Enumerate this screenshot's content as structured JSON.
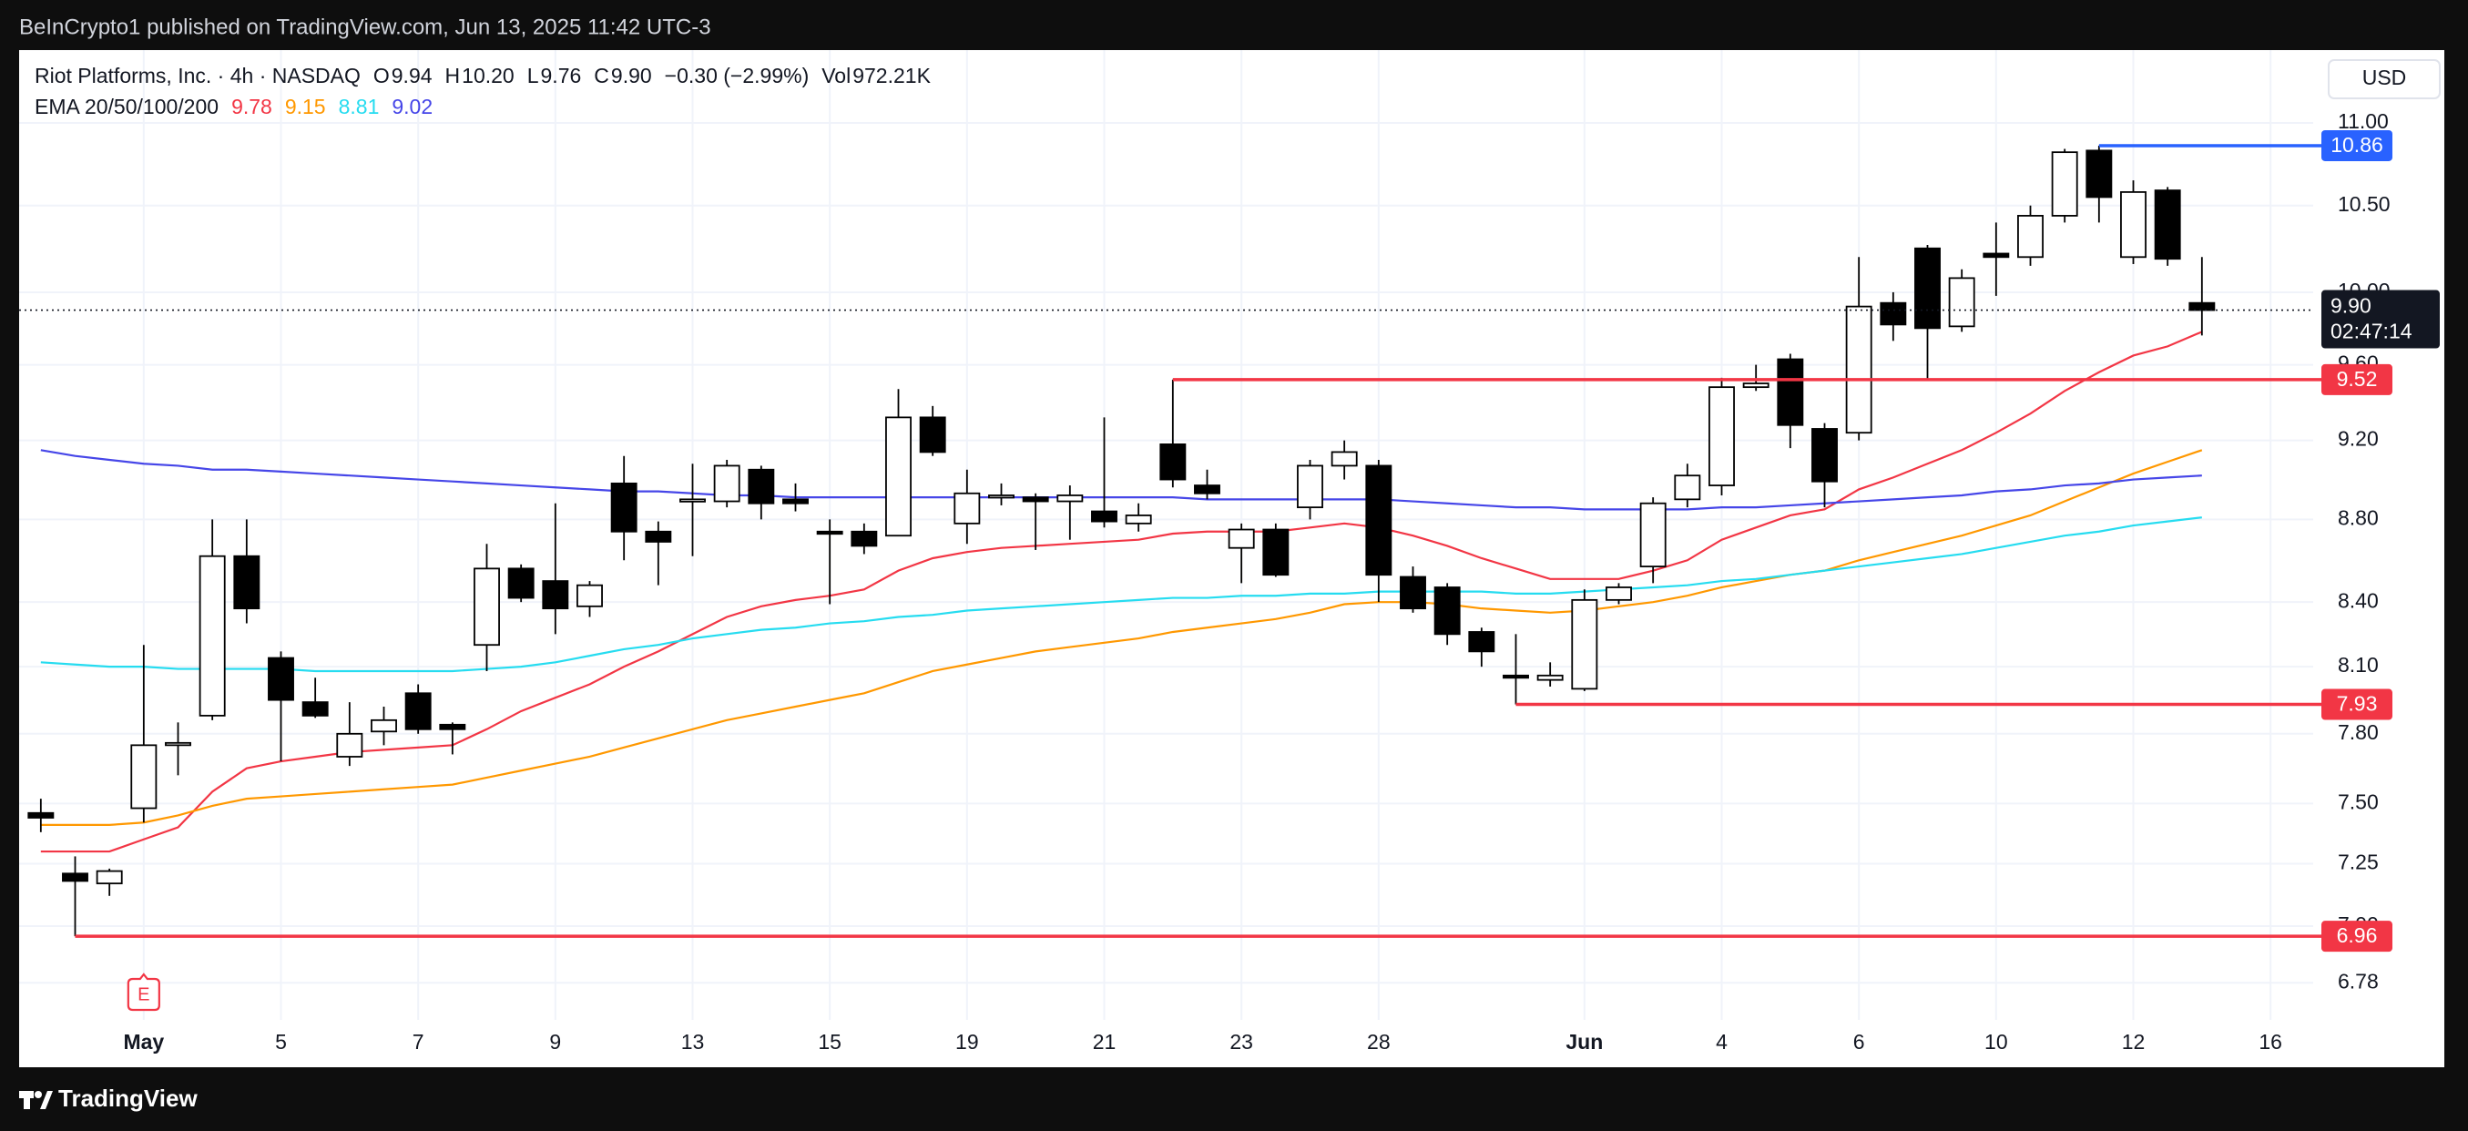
{
  "header": {
    "attribution": "BeInCrypto1 published on TradingView.com, Jun 13, 2025 11:42 UTC-3"
  },
  "chart_data": {
    "type": "candlestick",
    "title": "Riot Platforms, Inc. · 4h · NASDAQ",
    "currency": "USD",
    "ohlc_labels": [
      "O",
      "H",
      "L",
      "C"
    ],
    "last_value_labels": {
      "open": "9.94",
      "high": "10.20",
      "low": "9.76",
      "close": "9.90"
    },
    "change": "−0.30 (−2.99%)",
    "volume_label": "Vol",
    "volume": "972.21K",
    "countdown": "02:47:14",
    "categories": [
      null,
      null,
      null,
      "May",
      null,
      null,
      null,
      "5",
      null,
      null,
      null,
      "7",
      null,
      null,
      null,
      "9",
      null,
      null,
      null,
      "13",
      null,
      null,
      null,
      "15",
      null,
      null,
      null,
      "19",
      null,
      null,
      null,
      "21",
      null,
      null,
      null,
      "23",
      null,
      null,
      null,
      "28",
      null,
      null,
      null,
      null,
      null,
      "Jun",
      null,
      null,
      null,
      "4",
      null,
      null,
      null,
      "6",
      null,
      null,
      null,
      "10",
      null,
      null,
      null,
      "12",
      null,
      null,
      null,
      "16"
    ],
    "open": [
      7.46,
      7.21,
      7.17,
      7.48,
      7.75,
      7.88,
      8.62,
      8.14,
      7.94,
      7.7,
      7.81,
      7.98,
      7.84,
      8.2,
      8.56,
      8.5,
      8.38,
      8.98,
      8.74,
      8.89,
      8.89,
      9.05,
      8.9,
      8.74,
      8.74,
      8.72,
      9.32,
      8.78,
      8.92,
      8.91,
      8.89,
      8.84,
      8.78,
      9.18,
      8.97,
      8.66,
      8.75,
      8.86,
      9.07,
      9.07,
      8.52,
      8.47,
      8.26,
      8.06,
      8.04,
      8.0,
      8.41,
      8.57,
      8.9,
      8.97,
      9.48,
      9.63,
      9.26,
      9.24,
      9.94,
      10.25,
      9.81,
      10.22,
      10.2,
      10.44,
      10.83,
      10.2,
      10.59,
      9.94,
      null,
      null
    ],
    "high": [
      7.52,
      7.28,
      7.23,
      8.2,
      7.85,
      8.8,
      8.8,
      8.17,
      8.05,
      7.94,
      7.92,
      8.02,
      7.85,
      8.68,
      8.58,
      8.88,
      8.5,
      9.12,
      8.79,
      9.08,
      9.1,
      9.07,
      8.98,
      8.8,
      8.78,
      9.47,
      9.38,
      9.05,
      8.98,
      8.93,
      8.97,
      9.32,
      8.88,
      9.52,
      9.05,
      8.78,
      8.78,
      9.1,
      9.2,
      9.1,
      8.57,
      8.49,
      8.28,
      8.25,
      8.12,
      8.46,
      8.49,
      8.91,
      9.08,
      9.53,
      9.6,
      9.66,
      9.29,
      10.2,
      10.0,
      10.27,
      10.13,
      10.4,
      10.5,
      10.84,
      10.86,
      10.65,
      10.61,
      10.2,
      null,
      null
    ],
    "low": [
      7.38,
      6.96,
      7.12,
      7.42,
      7.62,
      7.86,
      8.3,
      7.68,
      7.87,
      7.66,
      7.75,
      7.8,
      7.71,
      8.08,
      8.4,
      8.25,
      8.33,
      8.6,
      8.48,
      8.62,
      8.86,
      8.8,
      8.84,
      8.39,
      8.63,
      8.72,
      9.12,
      8.68,
      8.87,
      8.65,
      8.7,
      8.76,
      8.74,
      8.96,
      8.9,
      8.49,
      8.52,
      8.8,
      9.0,
      8.4,
      8.35,
      8.2,
      8.1,
      7.93,
      8.01,
      7.99,
      8.39,
      8.49,
      8.86,
      8.92,
      9.46,
      9.16,
      8.86,
      9.2,
      9.73,
      9.52,
      9.78,
      9.98,
      10.15,
      10.4,
      10.4,
      10.16,
      10.15,
      9.76,
      null,
      null
    ],
    "close": [
      7.44,
      7.18,
      7.22,
      7.75,
      7.76,
      8.62,
      8.37,
      7.95,
      7.88,
      7.8,
      7.86,
      7.82,
      7.82,
      8.56,
      8.42,
      8.37,
      8.48,
      8.74,
      8.69,
      8.9,
      9.07,
      8.88,
      8.88,
      8.73,
      8.67,
      9.32,
      9.14,
      8.93,
      8.92,
      8.89,
      8.92,
      8.79,
      8.82,
      9.0,
      8.93,
      8.75,
      8.53,
      9.07,
      9.14,
      8.53,
      8.37,
      8.25,
      8.17,
      8.05,
      8.06,
      8.41,
      8.47,
      8.88,
      9.02,
      9.48,
      9.5,
      9.28,
      8.99,
      9.92,
      9.82,
      9.8,
      10.08,
      10.2,
      10.44,
      10.82,
      10.55,
      10.58,
      10.19,
      9.9,
      null,
      null
    ],
    "up_color": "#ffffff",
    "down_color": "#000000",
    "wick_color": "#000000",
    "indicator_title": "EMA 20/50/100/200",
    "series": [
      {
        "color": "#f23645",
        "values": [
          7.3,
          7.3,
          7.3,
          7.35,
          7.4,
          7.55,
          7.65,
          7.68,
          7.7,
          7.72,
          7.73,
          7.74,
          7.75,
          7.82,
          7.9,
          7.96,
          8.02,
          8.1,
          8.17,
          8.25,
          8.33,
          8.38,
          8.41,
          8.43,
          8.46,
          8.55,
          8.61,
          8.64,
          8.66,
          8.67,
          8.68,
          8.69,
          8.7,
          8.73,
          8.74,
          8.74,
          8.74,
          8.76,
          8.78,
          8.76,
          8.72,
          8.67,
          8.61,
          8.56,
          8.51,
          8.51,
          8.51,
          8.55,
          8.6,
          8.7,
          8.76,
          8.82,
          8.85,
          8.95,
          9.01,
          9.08,
          9.15,
          9.24,
          9.34,
          9.46,
          9.56,
          9.65,
          9.7,
          9.78,
          null,
          null
        ]
      },
      {
        "color": "#ff9800",
        "values": [
          7.41,
          7.41,
          7.41,
          7.42,
          7.45,
          7.49,
          7.52,
          7.53,
          7.54,
          7.55,
          7.56,
          7.57,
          7.58,
          7.61,
          7.64,
          7.67,
          7.7,
          7.74,
          7.78,
          7.82,
          7.86,
          7.89,
          7.92,
          7.95,
          7.98,
          8.03,
          8.08,
          8.11,
          8.14,
          8.17,
          8.19,
          8.21,
          8.23,
          8.26,
          8.28,
          8.3,
          8.32,
          8.35,
          8.39,
          8.4,
          8.4,
          8.39,
          8.37,
          8.36,
          8.35,
          8.36,
          8.38,
          8.4,
          8.43,
          8.47,
          8.5,
          8.53,
          8.55,
          8.6,
          8.64,
          8.68,
          8.72,
          8.77,
          8.82,
          8.89,
          8.96,
          9.03,
          9.09,
          9.15,
          null,
          null
        ]
      },
      {
        "color": "#26dcf0",
        "values": [
          8.12,
          8.11,
          8.1,
          8.1,
          8.09,
          8.09,
          8.09,
          8.09,
          8.08,
          8.08,
          8.08,
          8.08,
          8.08,
          8.09,
          8.1,
          8.12,
          8.15,
          8.18,
          8.2,
          8.23,
          8.25,
          8.27,
          8.28,
          8.3,
          8.31,
          8.33,
          8.34,
          8.36,
          8.37,
          8.38,
          8.39,
          8.4,
          8.41,
          8.42,
          8.42,
          8.43,
          8.43,
          8.44,
          8.44,
          8.45,
          8.45,
          8.45,
          8.45,
          8.44,
          8.44,
          8.45,
          8.46,
          8.47,
          8.48,
          8.5,
          8.51,
          8.53,
          8.55,
          8.57,
          8.59,
          8.61,
          8.63,
          8.66,
          8.69,
          8.72,
          8.74,
          8.77,
          8.79,
          8.81,
          null,
          null
        ]
      },
      {
        "color": "#4646e8",
        "values": [
          9.15,
          9.12,
          9.1,
          9.08,
          9.07,
          9.05,
          9.05,
          9.04,
          9.03,
          9.02,
          9.01,
          9.0,
          8.99,
          8.98,
          8.97,
          8.96,
          8.95,
          8.94,
          8.94,
          8.93,
          8.92,
          8.92,
          8.91,
          8.91,
          8.91,
          8.91,
          8.91,
          8.91,
          8.91,
          8.91,
          8.91,
          8.91,
          8.91,
          8.91,
          8.9,
          8.9,
          8.9,
          8.9,
          8.9,
          8.9,
          8.89,
          8.88,
          8.87,
          8.86,
          8.86,
          8.85,
          8.85,
          8.85,
          8.85,
          8.86,
          8.86,
          8.87,
          8.88,
          8.89,
          8.9,
          8.91,
          8.92,
          8.94,
          8.95,
          8.97,
          8.98,
          9.0,
          9.01,
          9.02,
          null,
          null
        ]
      }
    ],
    "levels": [
      {
        "value": 10.86,
        "color": "#2962ff"
      },
      {
        "value": 9.52,
        "color": "#f23645"
      },
      {
        "value": 7.93,
        "color": "#f23645"
      },
      {
        "value": 6.96,
        "color": "#f23645"
      }
    ],
    "event_marker": {
      "label": "E",
      "at": "May",
      "color": "#f23645"
    },
    "log_scale": true,
    "grid": true,
    "ylim": [
      6.64,
      11.46
    ],
    "yticks": [
      {
        "value": 11,
        "label": "11.00"
      },
      {
        "value": 10.5,
        "label": "10.50"
      },
      {
        "value": 10,
        "label": "10.00"
      },
      {
        "value": 9.6,
        "label": "9.60"
      },
      {
        "value": 9.2,
        "label": "9.20"
      },
      {
        "value": 8.8,
        "label": "8.80"
      },
      {
        "value": 8.4,
        "label": "8.40"
      },
      {
        "value": 8.1,
        "label": "8.10"
      },
      {
        "value": 7.8,
        "label": "7.80"
      },
      {
        "value": 7.5,
        "label": "7.50"
      },
      7.25,
      {
        "value": 7,
        "label": "7.00"
      },
      6.78
    ]
  },
  "footer": {
    "brand": "TradingView"
  }
}
